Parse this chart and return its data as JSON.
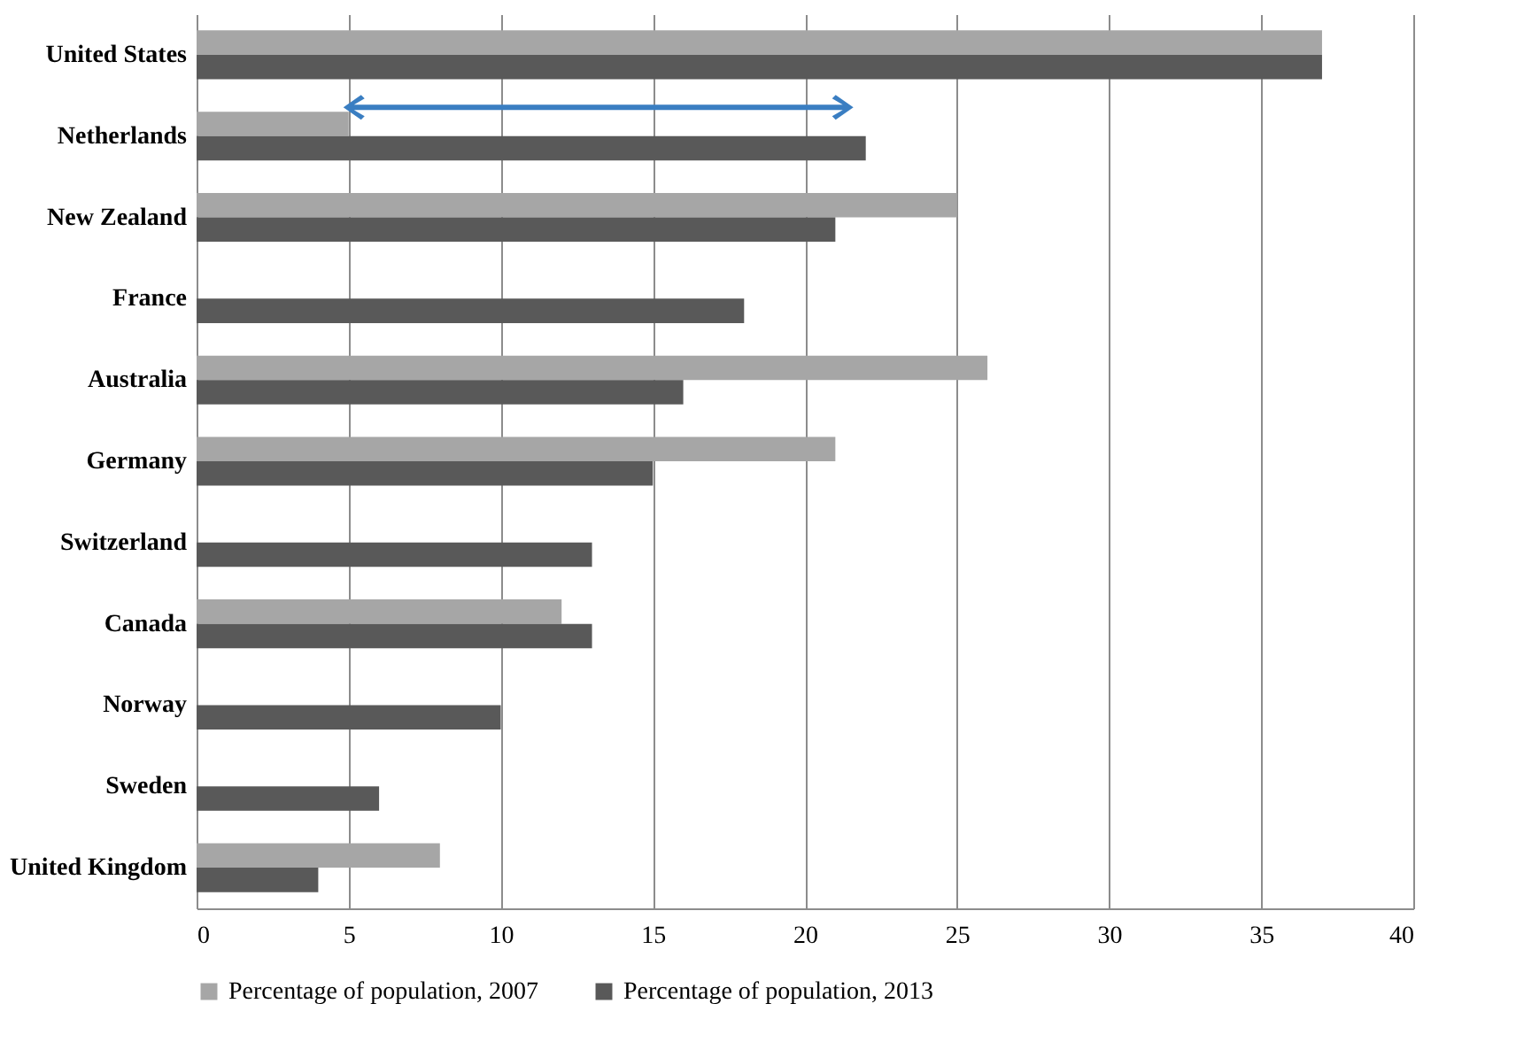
{
  "chart_data": {
    "type": "bar",
    "orientation": "horizontal",
    "categories": [
      "United States",
      "Netherlands",
      "New Zealand",
      "France",
      "Australia",
      "Germany",
      "Switzerland",
      "Canada",
      "Norway",
      "Sweden",
      "United Kingdom"
    ],
    "series": [
      {
        "name": "Percentage of population, 2007",
        "color": "#a6a6a6",
        "values": [
          37,
          5,
          25,
          null,
          26,
          21,
          null,
          12,
          null,
          null,
          8
        ]
      },
      {
        "name": "Percentage of population, 2013",
        "color": "#595959",
        "values": [
          37,
          22,
          21,
          18,
          16,
          15,
          13,
          13,
          10,
          6,
          4
        ]
      }
    ],
    "xlim": [
      0,
      40
    ],
    "xticks": [
      0,
      5,
      10,
      15,
      20,
      25,
      30,
      35,
      40
    ],
    "grid": "x",
    "legend": "bottom"
  }
}
